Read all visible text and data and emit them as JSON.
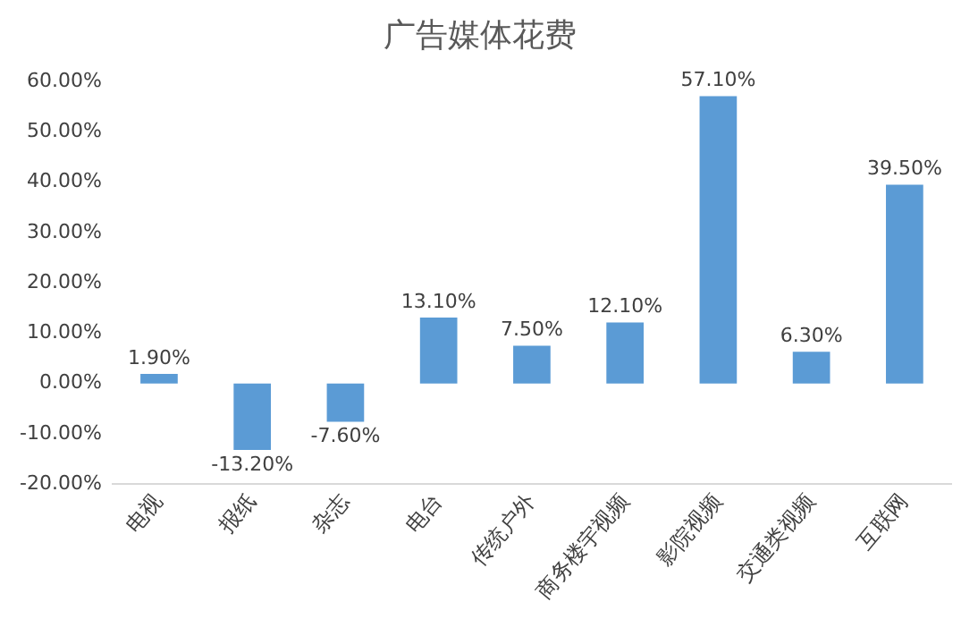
{
  "chart_data": {
    "type": "bar",
    "title": "广告媒体花费",
    "categories": [
      "电视",
      "报纸",
      "杂志",
      "电台",
      "传统户外",
      "商务楼宇视频",
      "影院视频",
      "交通类视频",
      "互联网"
    ],
    "values": [
      1.9,
      -13.2,
      -7.6,
      13.1,
      7.5,
      12.1,
      57.1,
      6.3,
      39.5
    ],
    "value_labels": [
      "1.90%",
      "-13.20%",
      "-7.60%",
      "13.10%",
      "7.50%",
      "12.10%",
      "57.10%",
      "6.30%",
      "39.50%"
    ],
    "color": "#5b9bd5",
    "ylim": [
      -20,
      60
    ],
    "yticks": [
      {
        "value": -20,
        "label": "-20.00%"
      },
      {
        "value": -10,
        "label": "-10.00%"
      },
      {
        "value": 0,
        "label": "0.00%"
      },
      {
        "value": 10,
        "label": "10.00%"
      },
      {
        "value": 20,
        "label": "20.00%"
      },
      {
        "value": 30,
        "label": "30.00%"
      },
      {
        "value": 40,
        "label": "40.00%"
      },
      {
        "value": 50,
        "label": "50.00%"
      },
      {
        "value": 60,
        "label": "60.00%"
      }
    ],
    "grid": false,
    "legend": false
  }
}
